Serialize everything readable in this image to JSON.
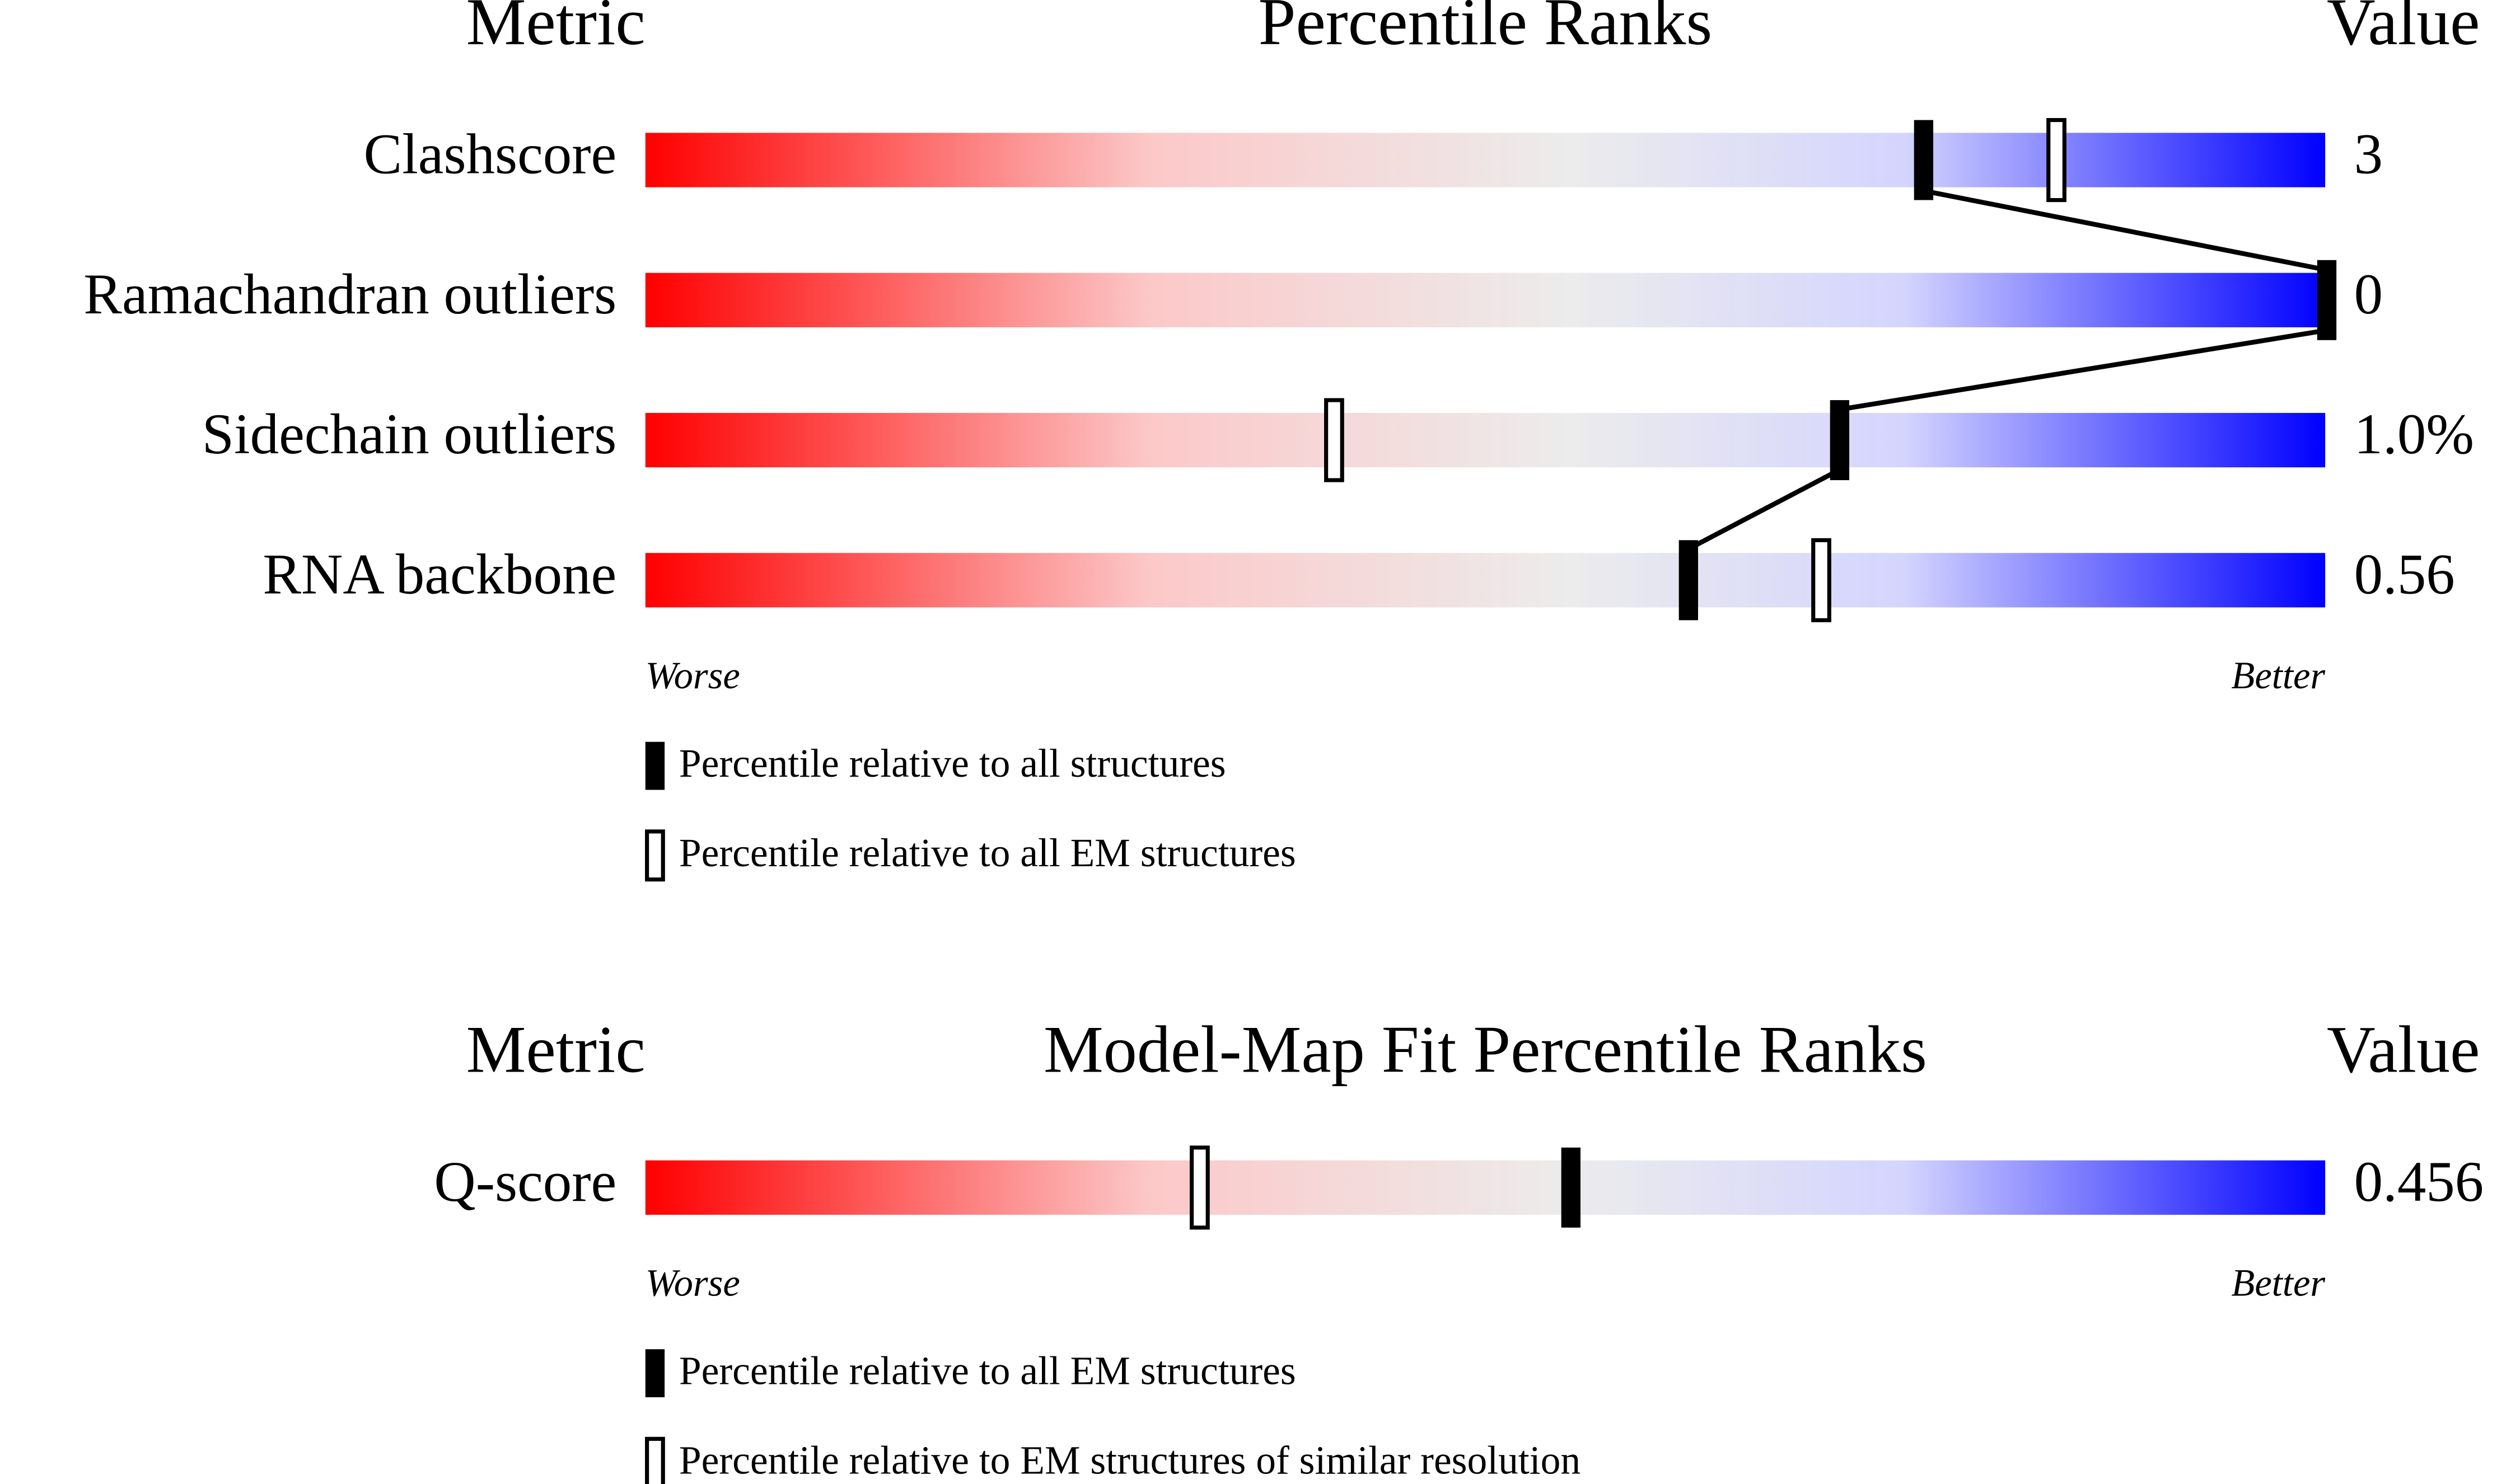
{
  "chart_data": [
    {
      "type": "percentile-slider",
      "header": {
        "metric": "Metric",
        "title": "Percentile Ranks",
        "value": "Value"
      },
      "xlim": [
        0,
        100
      ],
      "metrics": [
        {
          "name": "Clashscore",
          "value": "3",
          "percentile": 76,
          "percentile_em": 84
        },
        {
          "name": "Ramachandran outliers",
          "value": "0",
          "percentile": 100,
          "percentile_em": null
        },
        {
          "name": "Sidechain outliers",
          "value": "1.0%",
          "percentile": 71,
          "percentile_em": 41
        },
        {
          "name": "RNA backbone",
          "value": "0.56",
          "percentile": 62,
          "percentile_em": 70
        }
      ],
      "worse": "Worse",
      "better": "Better",
      "legend": {
        "filled": "Percentile relative to all structures",
        "open": "Percentile relative to all EM structures"
      },
      "connect": true
    },
    {
      "type": "percentile-slider",
      "header": {
        "metric": "Metric",
        "title": "Model-Map Fit Percentile Ranks",
        "value": "Value"
      },
      "xlim": [
        0,
        100
      ],
      "metrics": [
        {
          "name": "Q-score",
          "value": "0.456",
          "percentile": 55,
          "percentile_em": 33
        }
      ],
      "worse": "Worse",
      "better": "Better",
      "legend": {
        "filled": "Percentile relative to all EM structures",
        "open": "Percentile relative to EM structures of similar resolution"
      },
      "connect": false
    }
  ]
}
